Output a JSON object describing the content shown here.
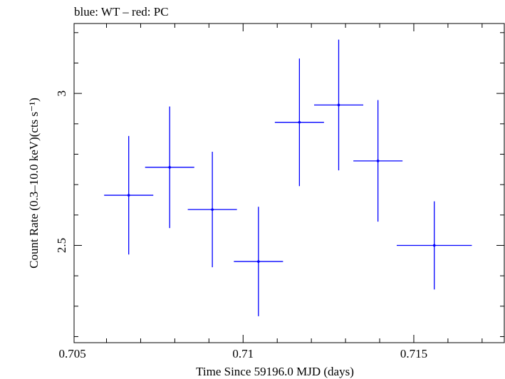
{
  "chart_data": {
    "type": "scatter",
    "title": "blue: WT – red: PC",
    "xlabel": "Time Since 59196.0 MJD (days)",
    "ylabel": "Count Rate (0.3–10.0 keV)(cts s⁻¹)",
    "xlim": [
      0.70505,
      0.71765
    ],
    "ylim": [
      2.18,
      3.23
    ],
    "x_ticks": [
      0.705,
      0.71,
      0.715
    ],
    "x_tick_labels": [
      "0.705",
      "0.71",
      "0.715"
    ],
    "y_ticks": [
      2.5,
      3.0
    ],
    "y_tick_labels": [
      "2.5",
      "3"
    ],
    "grid": false,
    "series": [
      {
        "name": "WT",
        "color": "#0000ff",
        "points": [
          {
            "x": 0.70665,
            "y": 2.665,
            "xerr": 0.00072,
            "yerr": 0.195
          },
          {
            "x": 0.70785,
            "y": 2.757,
            "xerr": 0.00072,
            "yerr": 0.2
          },
          {
            "x": 0.7091,
            "y": 2.618,
            "xerr": 0.00072,
            "yerr": 0.19
          },
          {
            "x": 0.71045,
            "y": 2.447,
            "xerr": 0.00072,
            "yerr": 0.18
          },
          {
            "x": 0.71165,
            "y": 2.905,
            "xerr": 0.00072,
            "yerr": 0.21
          },
          {
            "x": 0.7128,
            "y": 2.962,
            "xerr": 0.00072,
            "yerr": 0.215
          },
          {
            "x": 0.71395,
            "y": 2.778,
            "xerr": 0.00072,
            "yerr": 0.2
          },
          {
            "x": 0.7156,
            "y": 2.5,
            "xerr": 0.0011,
            "yerr": 0.145
          }
        ]
      }
    ]
  }
}
